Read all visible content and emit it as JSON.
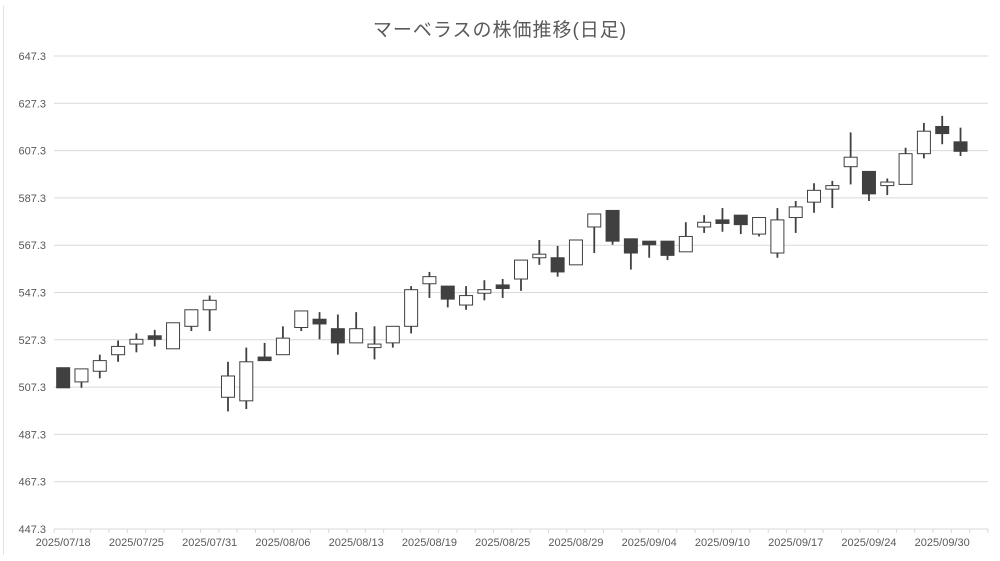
{
  "chart_data": {
    "type": "candlestick",
    "title": "マーベラスの株価推移(日足)",
    "grid": true,
    "legend_position": "none",
    "y_axis": {
      "min": 447.3,
      "max": 647.3,
      "tick_step": 20,
      "tick_labels": [
        "647.3",
        "627.3",
        "607.3",
        "587.3",
        "567.3",
        "547.3",
        "527.3",
        "507.3",
        "487.3",
        "467.3",
        "447.3"
      ]
    },
    "x_axis": {
      "labels": [
        "2025/07/18",
        "2025/07/25",
        "2025/07/31",
        "2025/08/06",
        "2025/08/13",
        "2025/08/19",
        "2025/08/25",
        "2025/08/29",
        "2025/09/04",
        "2025/09/10",
        "2025/09/17",
        "2025/09/24",
        "2025/09/30"
      ],
      "label_candle_indices": [
        0,
        4,
        8,
        12,
        16,
        20,
        24,
        28,
        32,
        36,
        40,
        44,
        48
      ]
    },
    "colors": {
      "up_fill": "#ffffff",
      "down_fill": "#404040",
      "stroke": "#404040",
      "gridline": "#d9d9d9",
      "axis_text": "#595959",
      "title_text": "#595959"
    },
    "candles_format": [
      "open",
      "high",
      "low",
      "close"
    ],
    "candles": [
      [
        515.5,
        515.5,
        507.0,
        507.0
      ],
      [
        509.5,
        515.0,
        507.0,
        515.0
      ],
      [
        514.0,
        521.0,
        511.0,
        518.5
      ],
      [
        521.0,
        527.0,
        518.0,
        524.5
      ],
      [
        525.5,
        530.0,
        522.0,
        527.5
      ],
      [
        529.0,
        531.5,
        524.5,
        527.5
      ],
      [
        523.5,
        534.5,
        523.5,
        534.5
      ],
      [
        533.0,
        540.0,
        531.0,
        540.0
      ],
      [
        540.0,
        546.0,
        531.0,
        544.0
      ],
      [
        503.0,
        518.0,
        497.0,
        512.0
      ],
      [
        501.5,
        524.0,
        498.0,
        518.0
      ],
      [
        520.0,
        526.0,
        518.5,
        518.5
      ],
      [
        521.0,
        533.0,
        521.0,
        528.0
      ],
      [
        532.5,
        539.5,
        531.0,
        539.5
      ],
      [
        536.0,
        539.0,
        527.5,
        534.0
      ],
      [
        532.0,
        538.0,
        521.0,
        526.0
      ],
      [
        526.0,
        539.0,
        526.0,
        532.0
      ],
      [
        524.0,
        533.0,
        519.0,
        525.5
      ],
      [
        526.0,
        533.0,
        524.0,
        533.0
      ],
      [
        533.0,
        550.0,
        530.0,
        548.5
      ],
      [
        551.0,
        556.0,
        545.0,
        554.0
      ],
      [
        550.0,
        550.0,
        541.0,
        544.5
      ],
      [
        542.0,
        550.0,
        540.0,
        546.0
      ],
      [
        547.0,
        552.5,
        544.0,
        548.5
      ],
      [
        550.5,
        553.0,
        545.0,
        549.0
      ],
      [
        553.0,
        561.0,
        548.0,
        561.0
      ],
      [
        562.0,
        569.5,
        559.0,
        563.5
      ],
      [
        562.0,
        567.0,
        554.0,
        556.0
      ],
      [
        559.0,
        569.5,
        559.0,
        569.5
      ],
      [
        575.0,
        580.5,
        564.0,
        580.5
      ],
      [
        582.0,
        582.0,
        567.5,
        569.0
      ],
      [
        570.0,
        570.0,
        557.0,
        564.0
      ],
      [
        569.0,
        569.0,
        562.0,
        567.5
      ],
      [
        569.0,
        569.0,
        561.0,
        563.0
      ],
      [
        564.5,
        577.0,
        564.5,
        571.0
      ],
      [
        575.0,
        580.0,
        572.5,
        577.0
      ],
      [
        578.0,
        583.0,
        573.0,
        576.5
      ],
      [
        580.0,
        580.0,
        572.0,
        576.0
      ],
      [
        572.0,
        579.0,
        571.0,
        579.0
      ],
      [
        564.0,
        583.0,
        562.0,
        578.0
      ],
      [
        579.0,
        586.0,
        572.5,
        583.5
      ],
      [
        585.5,
        593.5,
        581.0,
        590.5
      ],
      [
        591.0,
        594.5,
        583.0,
        592.5
      ],
      [
        600.5,
        615.0,
        593.0,
        604.5
      ],
      [
        598.5,
        598.5,
        586.0,
        589.0
      ],
      [
        592.5,
        595.5,
        588.5,
        594.0
      ],
      [
        593.0,
        608.5,
        593.0,
        606.0
      ],
      [
        606.0,
        619.0,
        604.0,
        615.5
      ],
      [
        617.5,
        622.0,
        610.0,
        614.5
      ],
      [
        611.0,
        617.0,
        605.0,
        607.0
      ]
    ]
  }
}
